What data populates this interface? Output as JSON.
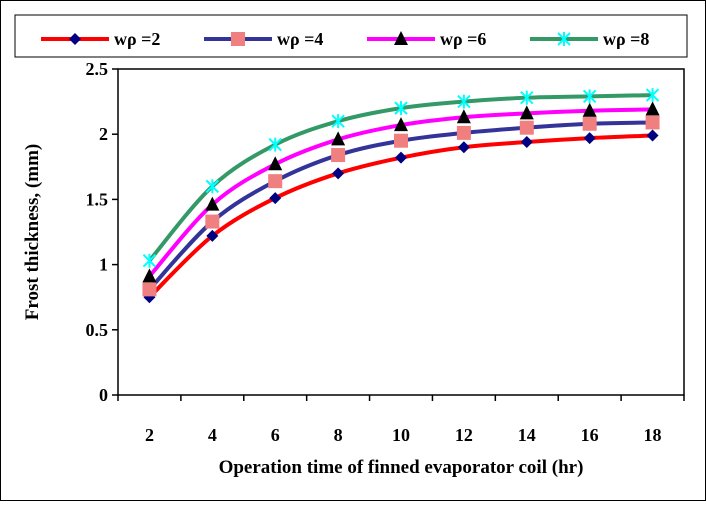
{
  "chart_data": {
    "type": "line",
    "title": "",
    "xlabel": "Operation time of finned evaporator coil (hr)",
    "ylabel": "Frost thickness, (mm)",
    "x": [
      2,
      4,
      6,
      8,
      10,
      12,
      14,
      16,
      18
    ],
    "xlim": [
      1,
      19
    ],
    "ylim": [
      0,
      2.5
    ],
    "yticks": [
      "0",
      "0.5",
      "1",
      "1.5",
      "2",
      "2.5"
    ],
    "xticks": [
      "2",
      "4",
      "6",
      "8",
      "10",
      "12",
      "14",
      "16",
      "18"
    ],
    "grid": false,
    "legend": "top",
    "series": [
      {
        "name": "wρ =2",
        "color": "#ff0000",
        "marker": "diamond",
        "marker_color": "#000080",
        "values": [
          0.75,
          1.22,
          1.51,
          1.7,
          1.82,
          1.9,
          1.94,
          1.97,
          1.99
        ]
      },
      {
        "name": "wρ =4",
        "color": "#333399",
        "marker": "square",
        "marker_color": "#f08080",
        "values": [
          0.81,
          1.33,
          1.64,
          1.84,
          1.95,
          2.01,
          2.05,
          2.08,
          2.09
        ]
      },
      {
        "name": "wρ =6",
        "color": "#ff00ff",
        "marker": "triangle",
        "marker_color": "#000000",
        "values": [
          0.91,
          1.46,
          1.77,
          1.96,
          2.07,
          2.13,
          2.16,
          2.18,
          2.19
        ]
      },
      {
        "name": "wρ =8",
        "color": "#339966",
        "marker": "x",
        "marker_color": "#00ffff",
        "values": [
          1.03,
          1.6,
          1.92,
          2.1,
          2.2,
          2.25,
          2.28,
          2.29,
          2.3
        ]
      }
    ]
  }
}
